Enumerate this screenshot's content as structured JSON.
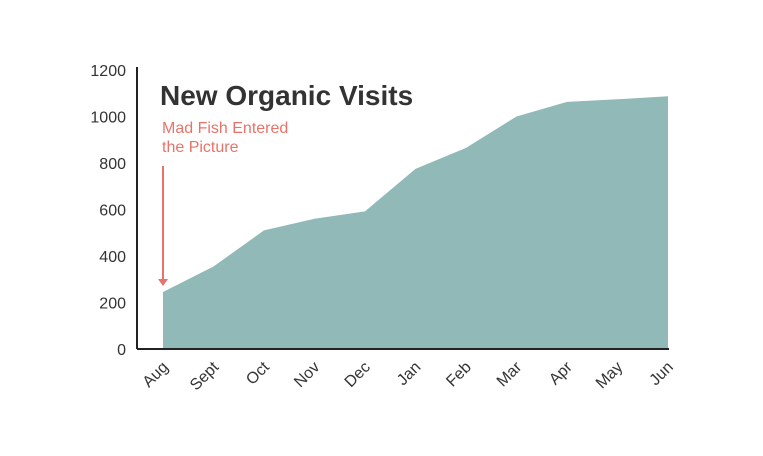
{
  "chart_data": {
    "type": "area",
    "title": "New Organic Visits",
    "categories": [
      "Aug",
      "Sept",
      "Oct",
      "Nov",
      "Dec",
      "Jan",
      "Feb",
      "Mar",
      "Apr",
      "May",
      "Jun"
    ],
    "values": [
      245,
      355,
      510,
      560,
      592,
      775,
      865,
      1000,
      1063,
      1074,
      1087
    ],
    "ylim": [
      0,
      1200
    ],
    "yticks": [
      0,
      200,
      400,
      600,
      800,
      1000,
      1200
    ],
    "xlabel": "",
    "ylabel": "",
    "grid": false,
    "annotation": {
      "line1": "Mad Fish Entered",
      "line2": "the Picture",
      "category": "Aug"
    },
    "colors": {
      "area": "#91b9b7",
      "annotation": "#e8736a",
      "axis": "#222222",
      "text": "#333333"
    }
  }
}
